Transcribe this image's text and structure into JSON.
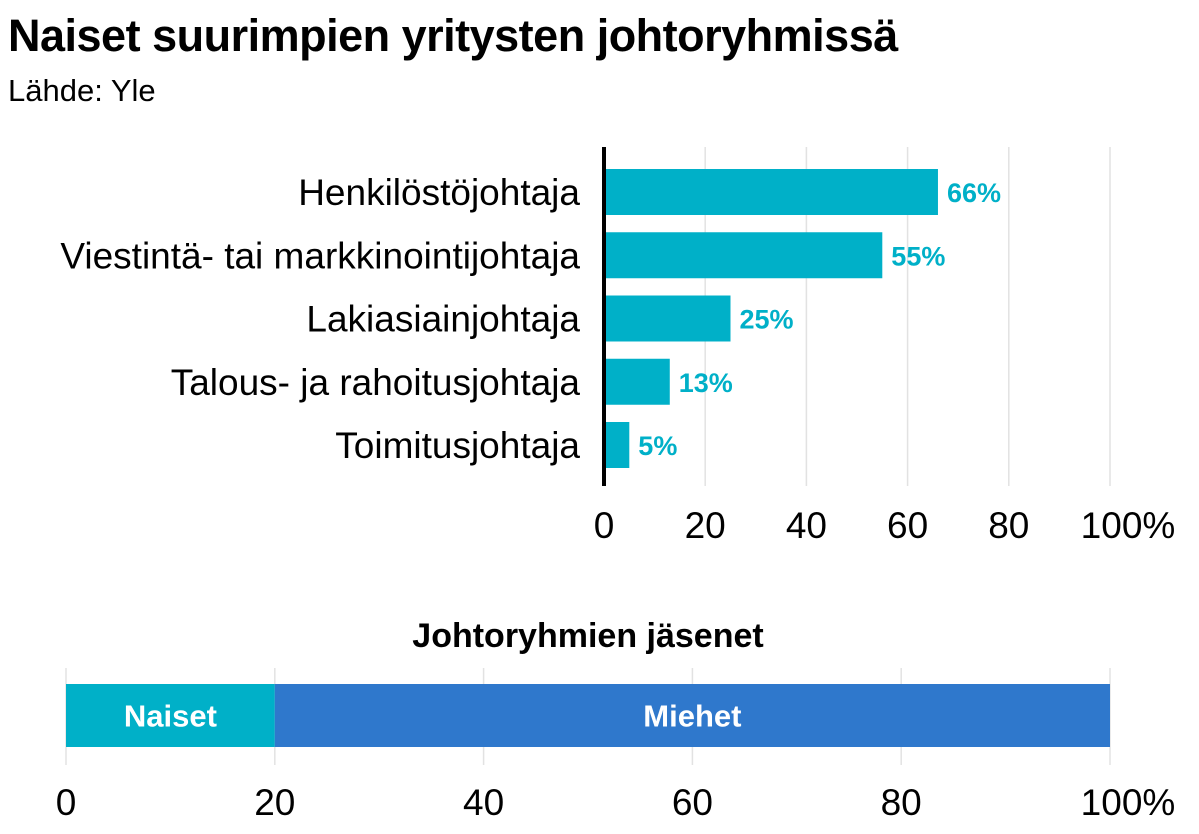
{
  "title": "Naiset suurimpien yritysten johtoryhmissä",
  "subtitle": "Lähde: Yle",
  "colors": {
    "teal": "#00b0c8",
    "blue": "#2f78cc",
    "grid": "#e2e2e2",
    "axis": "#000000"
  },
  "chart_data": [
    {
      "type": "bar",
      "orientation": "horizontal",
      "categories": [
        "Henkilöstöjohtaja",
        "Viestintä- tai markkinointijohtaja",
        "Lakiasiainjohtaja",
        "Talous- ja rahoitusjohtaja",
        "Toimitusjohtaja"
      ],
      "values": [
        66,
        55,
        25,
        13,
        5
      ],
      "value_labels": [
        "66%",
        "55%",
        "25%",
        "13%",
        "5%"
      ],
      "xlim": [
        0,
        100
      ],
      "ticks": [
        0,
        20,
        40,
        60,
        80,
        100
      ],
      "tick_labels": [
        "0",
        "20",
        "40",
        "60",
        "80",
        "100%"
      ],
      "grid": true,
      "color": "#00b0c8"
    },
    {
      "type": "bar",
      "orientation": "horizontal",
      "stacked": true,
      "title": "Johtoryhmien jäsenet",
      "series": [
        {
          "name": "Naiset",
          "values": [
            20
          ],
          "color": "#00b0c8"
        },
        {
          "name": "Miehet",
          "values": [
            80
          ],
          "color": "#2f78cc"
        }
      ],
      "xlim": [
        0,
        100
      ],
      "ticks": [
        0,
        20,
        40,
        60,
        80,
        100
      ],
      "tick_labels": [
        "0",
        "20",
        "40",
        "60",
        "80",
        "100%"
      ],
      "grid": true
    }
  ]
}
